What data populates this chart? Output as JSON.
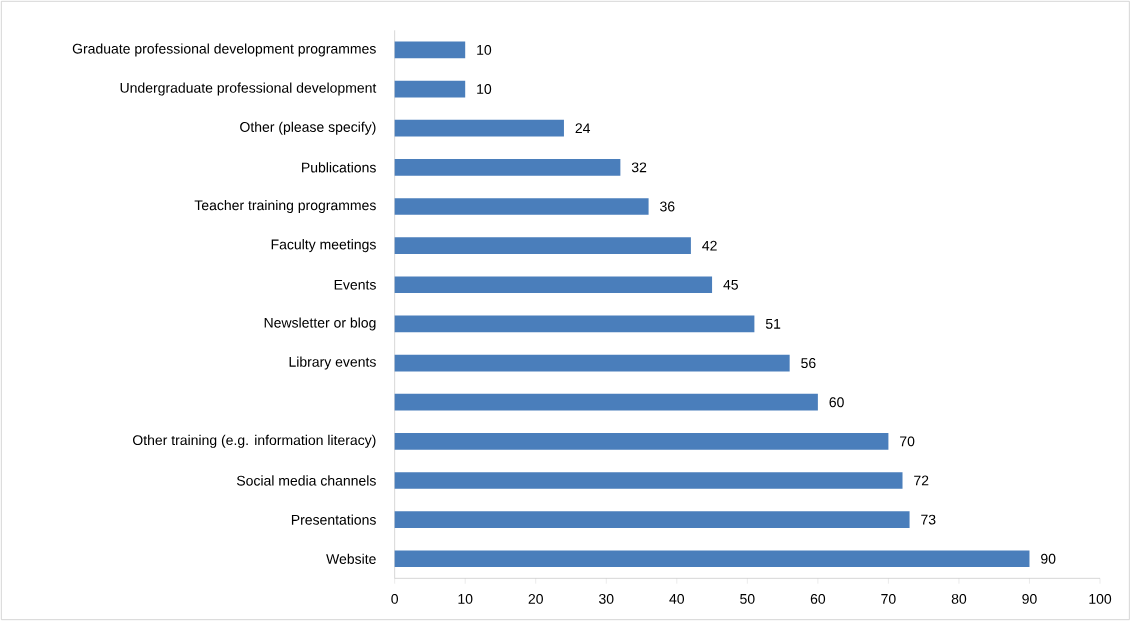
{
  "chart_data": {
    "type": "bar",
    "orientation": "horizontal",
    "categories": [
      "Graduate professional development programmes",
      "Undergraduate professional development",
      "Other (please specify)",
      "Publications",
      "Teacher training programmes",
      "Faculty meetings",
      "Events",
      "Newsletter or blog",
      "Library events",
      null,
      "Other training (e.g. information literacy)",
      "Social media channels",
      "Presentations",
      "Website"
    ],
    "values": [
      10,
      10,
      24,
      32,
      36,
      42,
      45,
      51,
      56,
      60,
      70,
      72,
      73,
      90
    ],
    "color": "#4a7ebb",
    "xlim": [
      0,
      100
    ],
    "xticks": [
      0,
      10,
      20,
      30,
      40,
      50,
      60,
      70,
      80,
      90,
      100
    ],
    "data_labels": true
  }
}
